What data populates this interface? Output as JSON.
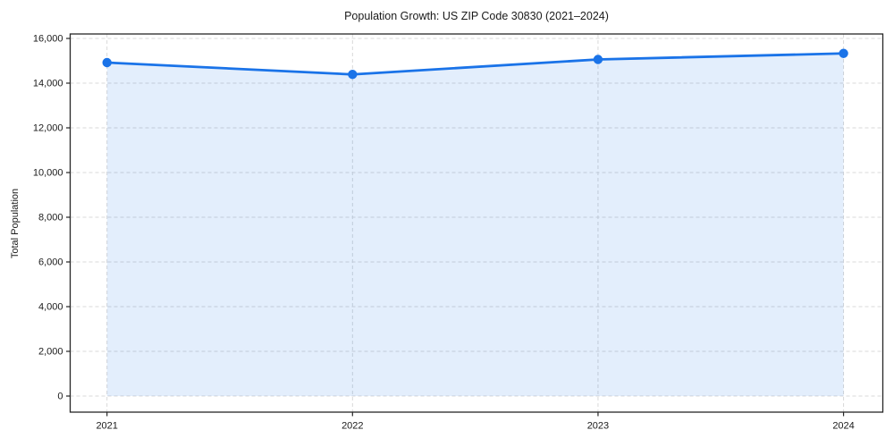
{
  "figure": {
    "background_color": "#ffffff"
  },
  "chart_data": {
    "type": "area",
    "title": "Population Growth: US ZIP Code 30830 (2021–2024)",
    "xlabel": "",
    "ylabel": "Total Population",
    "x": [
      2021,
      2022,
      2023,
      2024
    ],
    "x_tick_labels": [
      "2021",
      "2022",
      "2023",
      "2024"
    ],
    "series": [
      {
        "name": "Total Population",
        "values": [
          14920,
          14390,
          15060,
          15330
        ]
      }
    ],
    "y_ticks": [
      0,
      2000,
      4000,
      6000,
      8000,
      10000,
      12000,
      14000,
      16000
    ],
    "y_tick_labels": [
      "0",
      "2,000",
      "4,000",
      "6,000",
      "8,000",
      "10,000",
      "12,000",
      "14,000",
      "16,000"
    ],
    "xlim": [
      2020.85,
      2024.16
    ],
    "ylim": [
      -720,
      16200
    ],
    "grid": true,
    "grid_style": "dashed",
    "legend": "none",
    "line_color": "#1a73e8",
    "fill_color": "rgba(26, 115, 232, 0.12)",
    "marker": "circle",
    "grid_color": "#d8d8d8",
    "frame_color": "#262626"
  }
}
